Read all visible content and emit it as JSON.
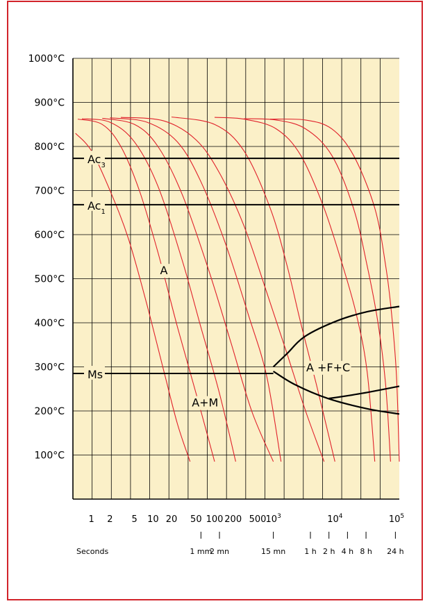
{
  "chart_data": {
    "type": "line",
    "title": "",
    "subtitle": "",
    "xlabel": "Seconds",
    "ylabel": "",
    "x_scale": "log",
    "xlim": [
      0.5,
      100000
    ],
    "ylim": [
      0,
      1000
    ],
    "grid": true,
    "y_ticks": [
      {
        "value": 100,
        "label": "100°C"
      },
      {
        "value": 200,
        "label": "200°C"
      },
      {
        "value": 300,
        "label": "300°C"
      },
      {
        "value": 400,
        "label": "400°C"
      },
      {
        "value": 500,
        "label": "500°C"
      },
      {
        "value": 600,
        "label": "600°C"
      },
      {
        "value": 700,
        "label": "700°C"
      },
      {
        "value": 800,
        "label": "800°C"
      },
      {
        "value": 900,
        "label": "900°C"
      },
      {
        "value": 1000,
        "label": "1000°C"
      }
    ],
    "x_ticks": [
      {
        "value": 1,
        "label": "1"
      },
      {
        "value": 2,
        "label": "2"
      },
      {
        "value": 5,
        "label": "5"
      },
      {
        "value": 10,
        "label": "10"
      },
      {
        "value": 20,
        "label": "20"
      },
      {
        "value": 50,
        "label": "50"
      },
      {
        "value": 100,
        "label": "100"
      },
      {
        "value": 200,
        "label": "200"
      },
      {
        "value": 500,
        "label": "500"
      },
      {
        "value": 1000,
        "label": "10",
        "sup": "3"
      },
      {
        "value": 10000,
        "label": "10",
        "sup": "4"
      },
      {
        "value": 100000,
        "label": "10",
        "sup": "5"
      }
    ],
    "time_marks": [
      {
        "value": 60,
        "label": "1 mm"
      },
      {
        "value": 120,
        "label": "2 mn"
      },
      {
        "value": 900,
        "label": "15 mn"
      },
      {
        "value": 3600,
        "label": "1 h"
      },
      {
        "value": 7200,
        "label": "2 h"
      },
      {
        "value": 14400,
        "label": "4 h"
      },
      {
        "value": 28800,
        "label": "8 h"
      },
      {
        "value": 86400,
        "label": "24 h"
      }
    ],
    "reference_lines": [
      {
        "label": "Ac",
        "sub": "3",
        "y": 773
      },
      {
        "label": "Ac",
        "sub": "1",
        "y": 668
      },
      {
        "label": "Ms",
        "y": 285,
        "x_end": 900
      }
    ],
    "phase_labels": [
      {
        "text": "A",
        "x": 15,
        "y": 510
      },
      {
        "text": "A+M",
        "x": 70,
        "y": 210
      },
      {
        "text": "A +F+C",
        "x": 7000,
        "y": 290
      }
    ],
    "transformation_curves": [
      {
        "name": "start",
        "points": [
          [
            900,
            300
          ],
          [
            1500,
            330
          ],
          [
            3000,
            370
          ],
          [
            10000,
            405
          ],
          [
            30000,
            425
          ],
          [
            100000,
            437
          ]
        ]
      },
      {
        "name": "bainite",
        "points": [
          [
            900,
            290
          ],
          [
            2000,
            260
          ],
          [
            7000,
            228
          ],
          [
            30000,
            205
          ],
          [
            100000,
            193
          ]
        ]
      },
      {
        "name": "end",
        "points": [
          [
            7000,
            228
          ],
          [
            25000,
            240
          ],
          [
            100000,
            256
          ]
        ]
      }
    ],
    "cooling_curves": [
      [
        [
          0.55,
          830
        ],
        [
          1,
          790
        ],
        [
          2,
          700
        ],
        [
          4,
          590
        ],
        [
          8,
          440
        ],
        [
          15,
          290
        ],
        [
          25,
          170
        ],
        [
          40,
          85
        ]
      ],
      [
        [
          0.6,
          862
        ],
        [
          1.5,
          850
        ],
        [
          3,
          800
        ],
        [
          6,
          700
        ],
        [
          12,
          560
        ],
        [
          25,
          390
        ],
        [
          50,
          240
        ],
        [
          100,
          85
        ]
      ],
      [
        [
          0.7,
          863
        ],
        [
          2,
          855
        ],
        [
          5,
          810
        ],
        [
          12,
          710
        ],
        [
          30,
          540
        ],
        [
          60,
          390
        ],
        [
          120,
          240
        ],
        [
          220,
          85
        ]
      ],
      [
        [
          1.5,
          864
        ],
        [
          5,
          850
        ],
        [
          12,
          800
        ],
        [
          30,
          690
        ],
        [
          80,
          520
        ],
        [
          180,
          360
        ],
        [
          400,
          200
        ],
        [
          900,
          85
        ]
      ],
      [
        [
          2,
          865
        ],
        [
          8,
          855
        ],
        [
          25,
          810
        ],
        [
          60,
          720
        ],
        [
          150,
          580
        ],
        [
          350,
          420
        ],
        [
          700,
          280
        ],
        [
          1200,
          85
        ]
      ],
      [
        [
          3,
          866
        ],
        [
          15,
          858
        ],
        [
          50,
          815
        ],
        [
          120,
          740
        ],
        [
          300,
          620
        ],
        [
          700,
          470
        ],
        [
          1500,
          330
        ],
        [
          3000,
          200
        ],
        [
          6000,
          85
        ]
      ],
      [
        [
          20,
          867
        ],
        [
          100,
          850
        ],
        [
          300,
          790
        ],
        [
          800,
          660
        ],
        [
          1500,
          530
        ],
        [
          2500,
          400
        ],
        [
          4500,
          260
        ],
        [
          9000,
          85
        ]
      ],
      [
        [
          100,
          866
        ],
        [
          300,
          862
        ],
        [
          1000,
          840
        ],
        [
          2500,
          780
        ],
        [
          6000,
          660
        ],
        [
          12000,
          530
        ],
        [
          20000,
          420
        ],
        [
          30000,
          290
        ],
        [
          40000,
          85
        ]
      ],
      [
        [
          300,
          863
        ],
        [
          1000,
          860
        ],
        [
          3000,
          840
        ],
        [
          8000,
          780
        ],
        [
          18000,
          660
        ],
        [
          30000,
          530
        ],
        [
          45000,
          400
        ],
        [
          60000,
          260
        ],
        [
          72000,
          85
        ]
      ],
      [
        [
          800,
          862
        ],
        [
          3000,
          860
        ],
        [
          8000,
          840
        ],
        [
          18000,
          780
        ],
        [
          40000,
          660
        ],
        [
          60000,
          530
        ],
        [
          75000,
          420
        ],
        [
          90000,
          280
        ],
        [
          100000,
          85
        ]
      ]
    ]
  }
}
